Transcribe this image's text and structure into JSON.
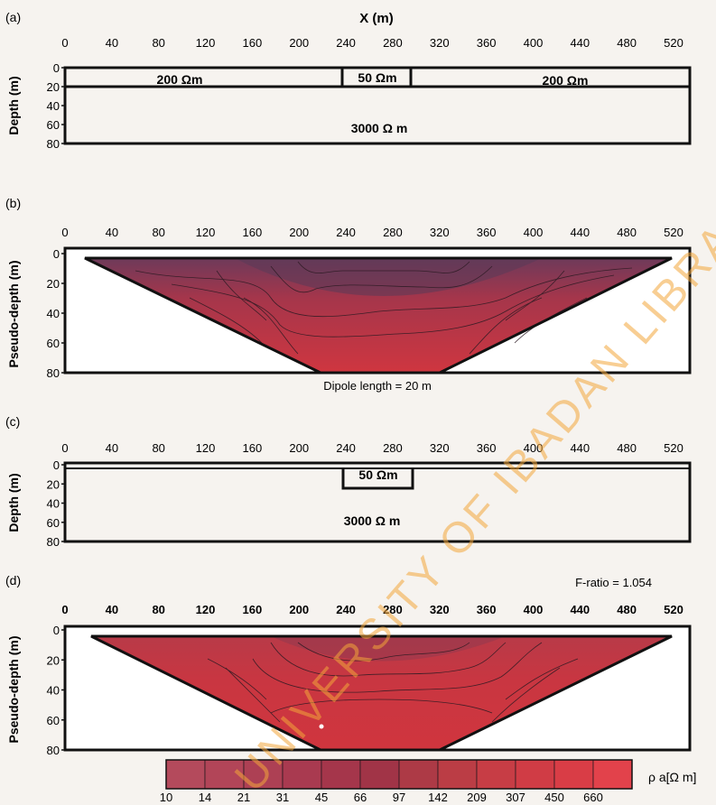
{
  "panels": {
    "a": {
      "label": "(a)",
      "x_title": "X (m)",
      "y_title": "Depth (m)",
      "x_ticks": [
        "0",
        "40",
        "80",
        "120",
        "160",
        "200",
        "240",
        "280",
        "320",
        "360",
        "400",
        "440",
        "480",
        "520"
      ],
      "y_ticks": [
        "0",
        "20",
        "40",
        "60",
        "80"
      ],
      "layers": [
        {
          "text": "200 Ωm"
        },
        {
          "text": "50 Ωm"
        },
        {
          "text": "200 Ωm"
        },
        {
          "text": "3000 Ω m"
        }
      ]
    },
    "b": {
      "label": "(b)",
      "y_title": "Pseudo-depth (m)",
      "x_ticks": [
        "0",
        "40",
        "80",
        "120",
        "160",
        "200",
        "240",
        "280",
        "320",
        "360",
        "400",
        "440",
        "480",
        "520"
      ],
      "y_ticks": [
        "0",
        "20",
        "40",
        "60",
        "80"
      ],
      "note": "Dipole length = 20 m"
    },
    "c": {
      "label": "(c)",
      "y_title": "Depth (m)",
      "x_ticks": [
        "0",
        "40",
        "80",
        "120",
        "160",
        "200",
        "240",
        "280",
        "320",
        "360",
        "400",
        "440",
        "480",
        "520"
      ],
      "y_ticks": [
        "0",
        "20",
        "40",
        "60",
        "80"
      ],
      "layers": [
        {
          "text": "50 Ωm"
        },
        {
          "text": "3000 Ω m"
        }
      ]
    },
    "d": {
      "label": "(d)",
      "y_title": "Pseudo-depth (m)",
      "x_ticks": [
        "0",
        "40",
        "80",
        "120",
        "160",
        "200",
        "240",
        "280",
        "320",
        "360",
        "400",
        "440",
        "480",
        "520"
      ],
      "y_ticks": [
        "0",
        "20",
        "40",
        "60",
        "80"
      ],
      "note": "F-ratio = 1.054"
    }
  },
  "colorbar": {
    "values": [
      "10",
      "14",
      "21",
      "31",
      "45",
      "66",
      "97",
      "142",
      "209",
      "307",
      "450",
      "660"
    ],
    "unit_label": "ρ a[Ω m]",
    "colors": [
      "#b44a5c",
      "#b24558",
      "#ad4054",
      "#a93a50",
      "#a5364b",
      "#a13447",
      "#ad3a46",
      "#bb3d45",
      "#c73d45",
      "#d03c45",
      "#d93d46",
      "#e2424b"
    ]
  },
  "watermark": "UNIVERSITY OF IBADAN LIBRARY",
  "colors": {
    "ink": "#111111",
    "red_main": "#c9333c",
    "red_dark": "#7e3a55",
    "red_mid": "#a53648",
    "watermark": "#f2a53a"
  }
}
